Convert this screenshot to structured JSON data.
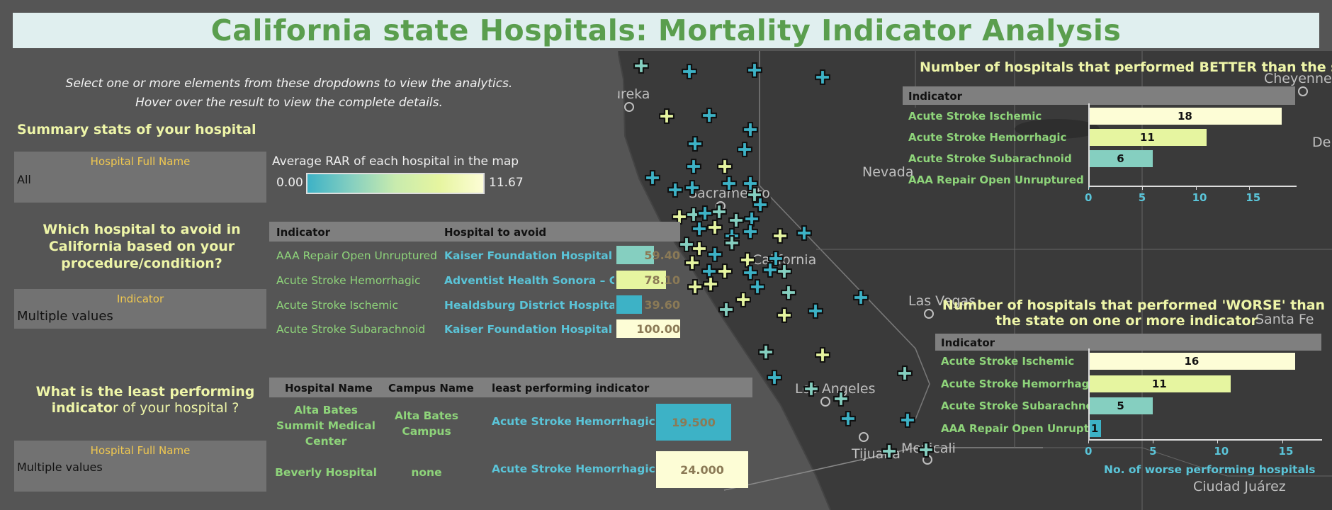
{
  "title": "California state Hospitals: Mortality Indicator Analysis",
  "instructions": {
    "line1": "Select one or more elements from these dropdowns to view the analytics.",
    "line2": "Hover over the result to view the complete details."
  },
  "summary": {
    "heading": "Summary stats of your hospital"
  },
  "filter1": {
    "label": "Hospital Full Name",
    "value": "All"
  },
  "legend": {
    "title": "Average RAR of each hospital in the map",
    "min": "0.00",
    "max": "11.67"
  },
  "avoid": {
    "heading": "Which hospital to avoid in California based on your procedure/condition?"
  },
  "filter2": {
    "label": "Indicator",
    "value": "Multiple values"
  },
  "avoid_table": {
    "headers": [
      "Indicator",
      "Hospital to avoid"
    ],
    "rows": [
      {
        "indicator": "AAA Repair Open Unruptured",
        "hospital": "Kaiser Foundation Hospital – ..",
        "value": "59.40",
        "fill": 0.594,
        "color": "#85cfc0"
      },
      {
        "indicator": "Acute Stroke Hemorrhagic",
        "hospital": "Adventist Health Sonora – Gre..",
        "value": "78.10",
        "fill": 0.781,
        "color": "#e6f5a0"
      },
      {
        "indicator": "Acute Stroke Ischemic",
        "hospital": "Healdsburg District Hospital",
        "value": "39.60",
        "fill": 0.396,
        "color": "#3db2c6"
      },
      {
        "indicator": "Acute Stroke Subarachnoid",
        "hospital": "Kaiser Foundation Hospital – ..",
        "value": "100.00",
        "fill": 1.0,
        "color": "#fdfdd6"
      }
    ]
  },
  "least": {
    "heading_bold": "What is the least performing indicato",
    "heading_rest": "r of your hospital ?"
  },
  "filter3": {
    "label": "Hospital Full Name",
    "value": "Multiple values"
  },
  "least_table": {
    "headers": [
      "Hospital Name",
      "Campus Name",
      "least performing indicator"
    ],
    "rows": [
      {
        "name_lines": [
          "Alta Bates",
          "Summit Medical",
          "Center"
        ],
        "campus_lines": [
          "Alta Bates",
          "Campus"
        ],
        "indicator": "Acute Stroke Hemorrhagic",
        "value": "19.500",
        "color": "#3db2c6"
      },
      {
        "name_lines": [
          "Beverly Hospital"
        ],
        "campus_lines": [
          "none"
        ],
        "indicator": "Acute Stroke Hemorrhagic",
        "value": "24.000",
        "color": "#fdfdd6"
      }
    ]
  },
  "map": {
    "cities": [
      "Eureka",
      "Sacramento",
      "Nevada",
      "California",
      "Las Vegas",
      "Los Angeles",
      "Tijuana",
      "Mexicali",
      "Cheyenne",
      "Santa Fe",
      "Ciudad Juárez",
      "Denver"
    ],
    "marker_colors": {
      "teal": "#3db2c6",
      "mint": "#85cfc0",
      "lime": "#e6f5a0",
      "cream": "#fdfdd6"
    }
  },
  "chart_data": [
    {
      "type": "bar",
      "title": "Number of hospitals that performed BETTER than the s..",
      "header": "Indicator",
      "categories": [
        "Acute Stroke Ischemic",
        "Acute Stroke Hemorrhagic",
        "Acute Stroke Subarachnoid",
        "AAA Repair Open Unruptured"
      ],
      "values": [
        18,
        11,
        6,
        0
      ],
      "colors": [
        "#fdfdd6",
        "#e6f5a0",
        "#85cfc0",
        "#3db2c6"
      ],
      "ticks": [
        "0",
        "5",
        "10",
        "15"
      ],
      "xlim": [
        0,
        19
      ],
      "xlabel": ""
    },
    {
      "type": "bar",
      "title_lines": [
        "Number of hospitals that performed 'WORSE' than",
        "the state on one or more indicator"
      ],
      "header": "Indicator",
      "categories": [
        "Acute Stroke Ischemic",
        "Acute Stroke Hemorrhagic",
        "Acute Stroke Subarachno..",
        "AAA Repair Open Unrupt.."
      ],
      "values": [
        16,
        11,
        5,
        1
      ],
      "colors": [
        "#fdfdd6",
        "#e6f5a0",
        "#85cfc0",
        "#3db2c6"
      ],
      "ticks": [
        "0",
        "5",
        "10",
        "15"
      ],
      "xlim": [
        0,
        17
      ],
      "xlabel": "No. of worse performing hospitals"
    }
  ]
}
